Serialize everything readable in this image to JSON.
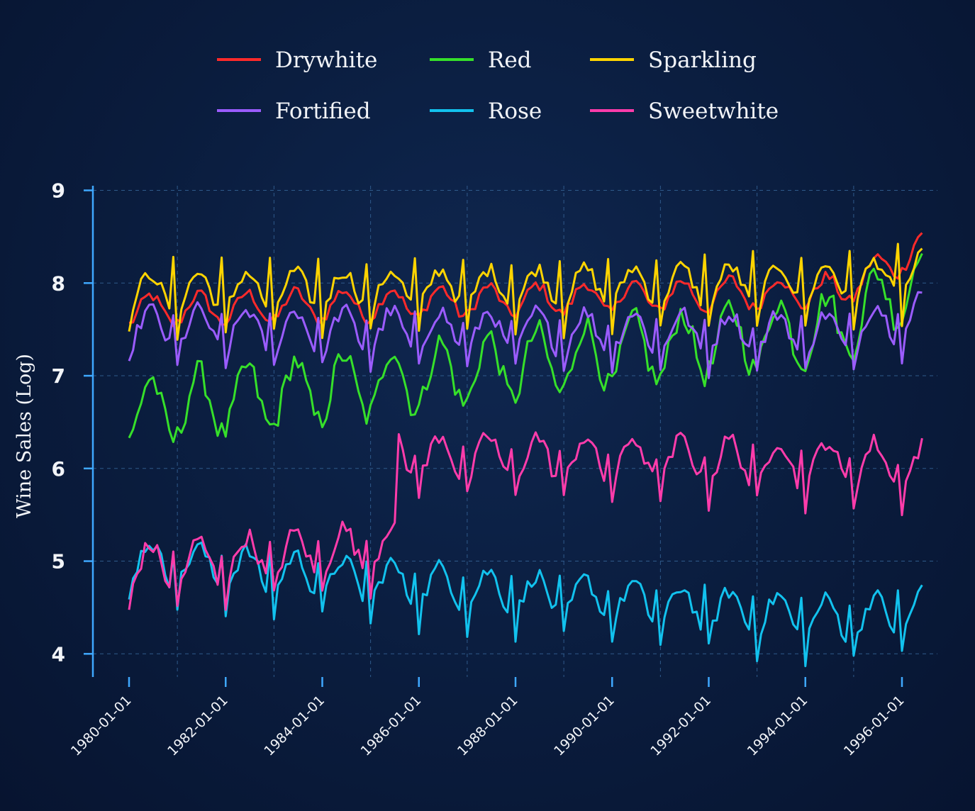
{
  "chart_data": {
    "type": "line",
    "title": "",
    "xlabel": "",
    "ylabel": "Wine Sales (Log)",
    "x_start": "1980-01",
    "x_end": "1996-06",
    "frequency": "monthly",
    "ylim": [
      3.75,
      9.05
    ],
    "yticks": [
      4,
      5,
      6,
      7,
      8,
      9
    ],
    "xticks": [
      "1980-01-01",
      "1982-01-01",
      "1984-01-01",
      "1986-01-01",
      "1988-01-01",
      "1990-01-01",
      "1992-01-01",
      "1994-01-01",
      "1996-01-01"
    ],
    "grid": true,
    "legend_position": "top",
    "series": [
      {
        "name": "Drywhite",
        "color": "#ff2a2a",
        "base": [
          7.7,
          7.92
        ],
        "end": 8.4,
        "amp": 0.16,
        "spike": 0
      },
      {
        "name": "Red",
        "color": "#36e02a",
        "base": [
          6.6,
          7.55
        ],
        "end": 8.1,
        "amp": 0.35,
        "spike": 0
      },
      {
        "name": "Sparkling",
        "color": "#ffd400",
        "base": [
          7.9,
          8.0
        ],
        "end": 8.1,
        "amp": 0.2,
        "spike": 0.5
      },
      {
        "name": "Fortified",
        "color": "#9b5cff",
        "base": [
          7.5,
          7.45
        ],
        "end": 7.68,
        "amp": 0.22,
        "spike": 0.35
      },
      {
        "name": "Rose",
        "color": "#12c2ee",
        "base": [
          5.0,
          4.35
        ],
        "end": 4.48,
        "amp": 0.22,
        "spike": 0.4
      },
      {
        "name": "Sweetwhite",
        "color": "#ff3cab",
        "base": [
          5.0,
          5.6
        ],
        "end": 5.62,
        "amp": 0.25,
        "spike": 0.35
      }
    ]
  }
}
